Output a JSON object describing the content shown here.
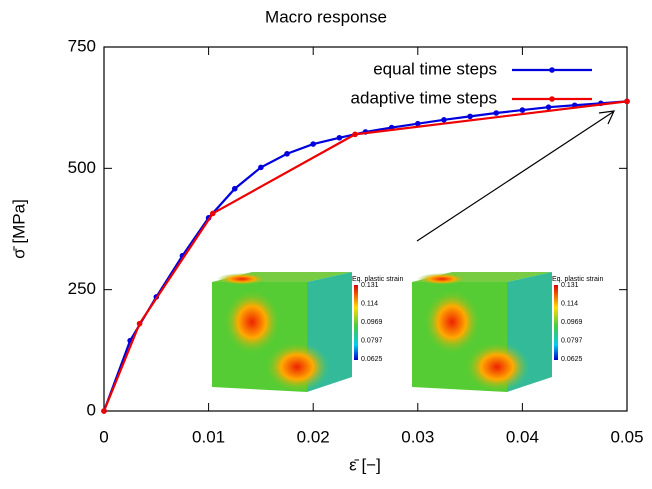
{
  "chart_data": {
    "type": "line",
    "title": "Macro response",
    "x_label": "ε̄ [−]",
    "y_label": "σ̄ [MPa]",
    "xlim": [
      0,
      0.05
    ],
    "ylim": [
      0,
      750
    ],
    "xticks": [
      0,
      0.01,
      0.02,
      0.03,
      0.04,
      0.05
    ],
    "yticks": [
      0,
      250,
      500,
      750
    ],
    "legend": "top-right",
    "series": [
      {
        "name": "equal time steps",
        "color": "#0000dd",
        "x": [
          0,
          0.0025,
          0.005,
          0.0075,
          0.01,
          0.0125,
          0.015,
          0.0175,
          0.02,
          0.0225,
          0.025,
          0.0275,
          0.03,
          0.0325,
          0.035,
          0.0375,
          0.04,
          0.0425,
          0.045,
          0.0475,
          0.05
        ],
        "values": [
          0,
          145,
          235,
          320,
          398,
          458,
          502,
          530,
          550,
          563,
          575,
          584,
          592,
          600,
          607,
          614,
          620,
          626,
          630,
          634,
          638
        ]
      },
      {
        "name": "adaptive time steps",
        "color": "#ee0000",
        "x": [
          0,
          0.0034,
          0.0104,
          0.024,
          0.05
        ],
        "values": [
          0,
          180,
          407,
          570,
          638
        ]
      }
    ],
    "insets": [
      {
        "colorbar_title": "Eq. plastic strain",
        "colorbar_labels": [
          "0.131",
          "0.114",
          "0.0969",
          "0.0797",
          "0.0625"
        ]
      },
      {
        "colorbar_title": "Eq. plastic strain",
        "colorbar_labels": [
          "0.131",
          "0.114",
          "0.0969",
          "0.0797",
          "0.0625"
        ]
      }
    ]
  }
}
